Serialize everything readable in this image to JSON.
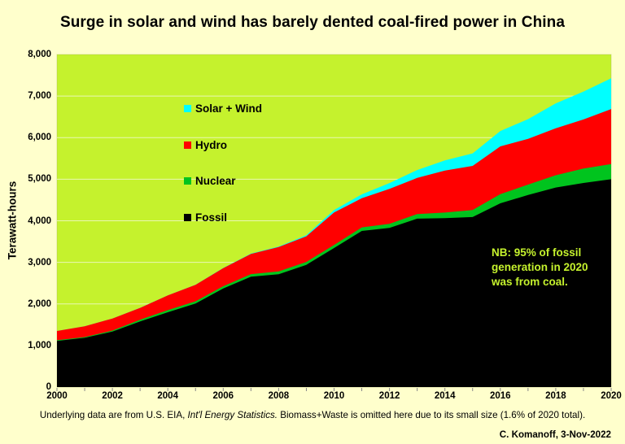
{
  "title": "Surge in solar and wind has barely dented coal-fired power in China",
  "axes": {
    "y_label": "Terawatt-hours",
    "y_ticks": [
      {
        "v": 8000,
        "label": "8,000"
      },
      {
        "v": 7000,
        "label": "7,000"
      },
      {
        "v": 6000,
        "label": "6,000"
      },
      {
        "v": 5000,
        "label": "5,000"
      },
      {
        "v": 4000,
        "label": "4,000"
      },
      {
        "v": 3000,
        "label": "3,000"
      },
      {
        "v": 2000,
        "label": "2,000"
      },
      {
        "v": 1000,
        "label": "1,000"
      },
      {
        "v": 0,
        "label": "0"
      }
    ],
    "x_ticks": [
      {
        "v": 2000,
        "label": "2000"
      },
      {
        "v": 2002,
        "label": "2002"
      },
      {
        "v": 2004,
        "label": "2004"
      },
      {
        "v": 2006,
        "label": "2006"
      },
      {
        "v": 2008,
        "label": "2008"
      },
      {
        "v": 2010,
        "label": "2010"
      },
      {
        "v": 2012,
        "label": "2012"
      },
      {
        "v": 2014,
        "label": "2014"
      },
      {
        "v": 2016,
        "label": "2016"
      },
      {
        "v": 2018,
        "label": "2018"
      },
      {
        "v": 2020,
        "label": "2020"
      }
    ]
  },
  "legend": [
    {
      "label": "Solar + Wind",
      "color": "#00ffff"
    },
    {
      "label": "Hydro",
      "color": "#ff0000"
    },
    {
      "label": "Nuclear",
      "color": "#00c41e"
    },
    {
      "label": "Fossil",
      "color": "#000000"
    }
  ],
  "annotation": {
    "lines": [
      "NB: 95% of fossil",
      "generation in 2020",
      "was from coal."
    ],
    "color": "#c5f22d"
  },
  "footer": {
    "prefix": "Underlying data are from U.S. EIA, ",
    "italic": "Int'l Energy Statistics.",
    "suffix": " Biomass+Waste is omitted here due to its small size (1.6% of 2020 total)."
  },
  "credit": "C. Komanoff, 3-Nov-2022",
  "chart_data": {
    "type": "area",
    "stacked": true,
    "title": "Surge in solar and wind has barely dented coal-fired power in China",
    "xlabel": "",
    "ylabel": "Terawatt-hours",
    "ylim": [
      0,
      8000
    ],
    "xlim": [
      2000,
      2020
    ],
    "grid": true,
    "plot_bg": "#c5f22d",
    "grid_color": "#e9f7b4",
    "tick_color": "#888888",
    "x": [
      2000,
      2001,
      2002,
      2003,
      2004,
      2005,
      2006,
      2007,
      2008,
      2009,
      2010,
      2011,
      2012,
      2013,
      2014,
      2015,
      2016,
      2017,
      2018,
      2019,
      2020
    ],
    "series": [
      {
        "name": "Fossil",
        "color": "#000000",
        "values": [
          1110,
          1185,
          1335,
          1580,
          1800,
          2010,
          2370,
          2655,
          2715,
          2940,
          3345,
          3755,
          3830,
          4050,
          4065,
          4090,
          4420,
          4620,
          4800,
          4910,
          5000
        ]
      },
      {
        "name": "Nuclear",
        "color": "#00c41e",
        "values": [
          17,
          17,
          25,
          42,
          50,
          53,
          55,
          62,
          68,
          70,
          74,
          86,
          97,
          111,
          133,
          171,
          220,
          250,
          295,
          348,
          366
        ]
      },
      {
        "name": "Hydro",
        "color": "#ff0000",
        "values": [
          222,
          261,
          288,
          284,
          354,
          397,
          436,
          485,
          585,
          616,
          780,
          700,
          840,
          870,
          1010,
          1060,
          1150,
          1100,
          1130,
          1180,
          1322
        ]
      },
      {
        "name": "Solar + Wind",
        "color": "#00ffff",
        "values": [
          1,
          1,
          1,
          1,
          1,
          2,
          4,
          9,
          14,
          28,
          60,
          95,
          140,
          190,
          245,
          300,
          370,
          475,
          600,
          670,
          740
        ]
      }
    ],
    "legend_position": "inside-top-left",
    "note": "NB: 95% of fossil generation in 2020 was from coal."
  }
}
